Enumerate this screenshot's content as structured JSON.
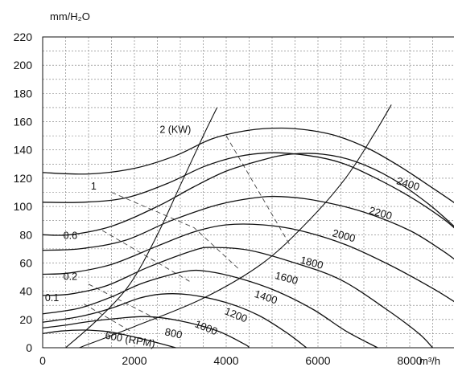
{
  "chart_data": {
    "type": "line",
    "xlabel": "m³/h",
    "ylabel": "mm/H₂O",
    "xlim": [
      0,
      9000
    ],
    "ylim": [
      0,
      220
    ],
    "x_ticks": [
      "0",
      "2000",
      "4000",
      "6000",
      "8000"
    ],
    "y_ticks": [
      "0",
      "20",
      "40",
      "60",
      "80",
      "100",
      "120",
      "140",
      "160",
      "180",
      "200",
      "220"
    ],
    "grid": true,
    "series": [
      {
        "name": "600 (RPM)",
        "points": [
          [
            0,
            10
          ],
          [
            400,
            11.8
          ],
          [
            900,
            12.5
          ],
          [
            1500,
            11
          ],
          [
            2200,
            6
          ],
          [
            2900,
            0
          ]
        ]
      },
      {
        "name": "800",
        "points": [
          [
            0,
            14
          ],
          [
            500,
            16
          ],
          [
            1000,
            18.5
          ],
          [
            1700,
            21
          ],
          [
            2300,
            22
          ],
          [
            3000,
            19
          ],
          [
            3800,
            12
          ],
          [
            4400,
            2.5
          ],
          [
            4500,
            0
          ]
        ]
      },
      {
        "name": "1000",
        "points": [
          [
            0,
            18
          ],
          [
            800,
            22
          ],
          [
            1500,
            28
          ],
          [
            2100,
            35
          ],
          [
            2600,
            38
          ],
          [
            3200,
            37.5
          ],
          [
            4000,
            32
          ],
          [
            4700,
            23
          ],
          [
            5300,
            11
          ],
          [
            5750,
            0
          ]
        ]
      },
      {
        "name": "1200",
        "points": [
          [
            0,
            24
          ],
          [
            800,
            28
          ],
          [
            1500,
            36
          ],
          [
            2200,
            46
          ],
          [
            3100,
            54
          ],
          [
            3600,
            54
          ],
          [
            4300,
            49
          ],
          [
            5100,
            40
          ],
          [
            5900,
            27
          ],
          [
            6600,
            12
          ],
          [
            7300,
            0
          ]
        ]
      },
      {
        "name": "1400",
        "points": [
          [
            0,
            37
          ],
          [
            600,
            38
          ],
          [
            1400,
            44
          ],
          [
            2300,
            57
          ],
          [
            3300,
            69
          ],
          [
            3700,
            71
          ],
          [
            4500,
            69
          ],
          [
            5500,
            60
          ],
          [
            6500,
            48
          ],
          [
            7500,
            27
          ],
          [
            8200,
            10
          ],
          [
            8500,
            0
          ]
        ]
      },
      {
        "name": "1600",
        "points": [
          [
            0,
            52
          ],
          [
            600,
            53
          ],
          [
            1500,
            59
          ],
          [
            2500,
            72
          ],
          [
            3300,
            82
          ],
          [
            4000,
            87
          ],
          [
            4800,
            87
          ],
          [
            5600,
            83
          ],
          [
            6600,
            73
          ],
          [
            7600,
            58
          ],
          [
            8500,
            42
          ],
          [
            9000,
            32
          ]
        ]
      },
      {
        "name": "1800",
        "points": [
          [
            0,
            69
          ],
          [
            800,
            70
          ],
          [
            1800,
            76
          ],
          [
            2800,
            90
          ],
          [
            3800,
            101
          ],
          [
            4600,
            106
          ],
          [
            5200,
            107
          ],
          [
            6000,
            104
          ],
          [
            7000,
            96
          ],
          [
            8000,
            83
          ],
          [
            8700,
            69
          ],
          [
            9000,
            62
          ]
        ]
      },
      {
        "name": "2000",
        "points": [
          [
            0,
            80
          ],
          [
            600,
            80
          ],
          [
            1500,
            86
          ],
          [
            2500,
            100
          ],
          [
            3300,
            114
          ],
          [
            4000,
            125
          ],
          [
            4800,
            133
          ],
          [
            5400,
            137
          ],
          [
            6100,
            137
          ],
          [
            6800,
            132
          ],
          [
            7600,
            120
          ],
          [
            8400,
            102
          ],
          [
            9000,
            85
          ]
        ]
      },
      {
        "name": "2200",
        "points": [
          [
            0,
            103
          ],
          [
            900,
            103
          ],
          [
            1800,
            106
          ],
          [
            2700,
            116
          ],
          [
            3500,
            128
          ],
          [
            4200,
            135
          ],
          [
            5000,
            138
          ],
          [
            5800,
            136
          ],
          [
            6500,
            131
          ],
          [
            7200,
            121
          ],
          [
            8000,
            107
          ],
          [
            8700,
            92
          ],
          [
            9000,
            84
          ]
        ]
      },
      {
        "name": "2400",
        "points": [
          [
            0,
            124
          ],
          [
            1000,
            123
          ],
          [
            2000,
            127
          ],
          [
            2900,
            136
          ],
          [
            3700,
            148
          ],
          [
            4500,
            154
          ],
          [
            5200,
            155.5
          ],
          [
            5800,
            154
          ],
          [
            6400,
            150
          ],
          [
            7100,
            141
          ],
          [
            7800,
            128
          ],
          [
            8500,
            113
          ],
          [
            9000,
            102
          ]
        ]
      }
    ],
    "system_curves": [
      {
        "points": [
          [
            500,
            0
          ],
          [
            1200,
            20
          ],
          [
            1900,
            45
          ],
          [
            2500,
            80
          ],
          [
            3000,
            115
          ],
          [
            3500,
            150
          ],
          [
            3800,
            170
          ]
        ]
      },
      {
        "points": [
          [
            800,
            0
          ],
          [
            2000,
            15
          ],
          [
            3500,
            35
          ],
          [
            4800,
            60
          ],
          [
            5800,
            90
          ],
          [
            6600,
            120
          ],
          [
            7200,
            150
          ],
          [
            7600,
            172
          ]
        ]
      }
    ],
    "power_lines": [
      {
        "name": "2 (KW)",
        "points": [
          [
            4000,
            150
          ],
          [
            5400,
            72
          ]
        ]
      },
      {
        "name": "1",
        "points": [
          [
            1500,
            110
          ],
          [
            3300,
            85
          ],
          [
            4300,
            55
          ]
        ]
      },
      {
        "name": "0.6",
        "points": [
          [
            1300,
            83
          ],
          [
            3200,
            47
          ]
        ]
      },
      {
        "name": "0.2",
        "points": [
          [
            1000,
            45
          ],
          [
            2500,
            20
          ]
        ]
      },
      {
        "name": "0.1",
        "points": [
          [
            900,
            31
          ],
          [
            1900,
            12
          ]
        ]
      }
    ]
  }
}
